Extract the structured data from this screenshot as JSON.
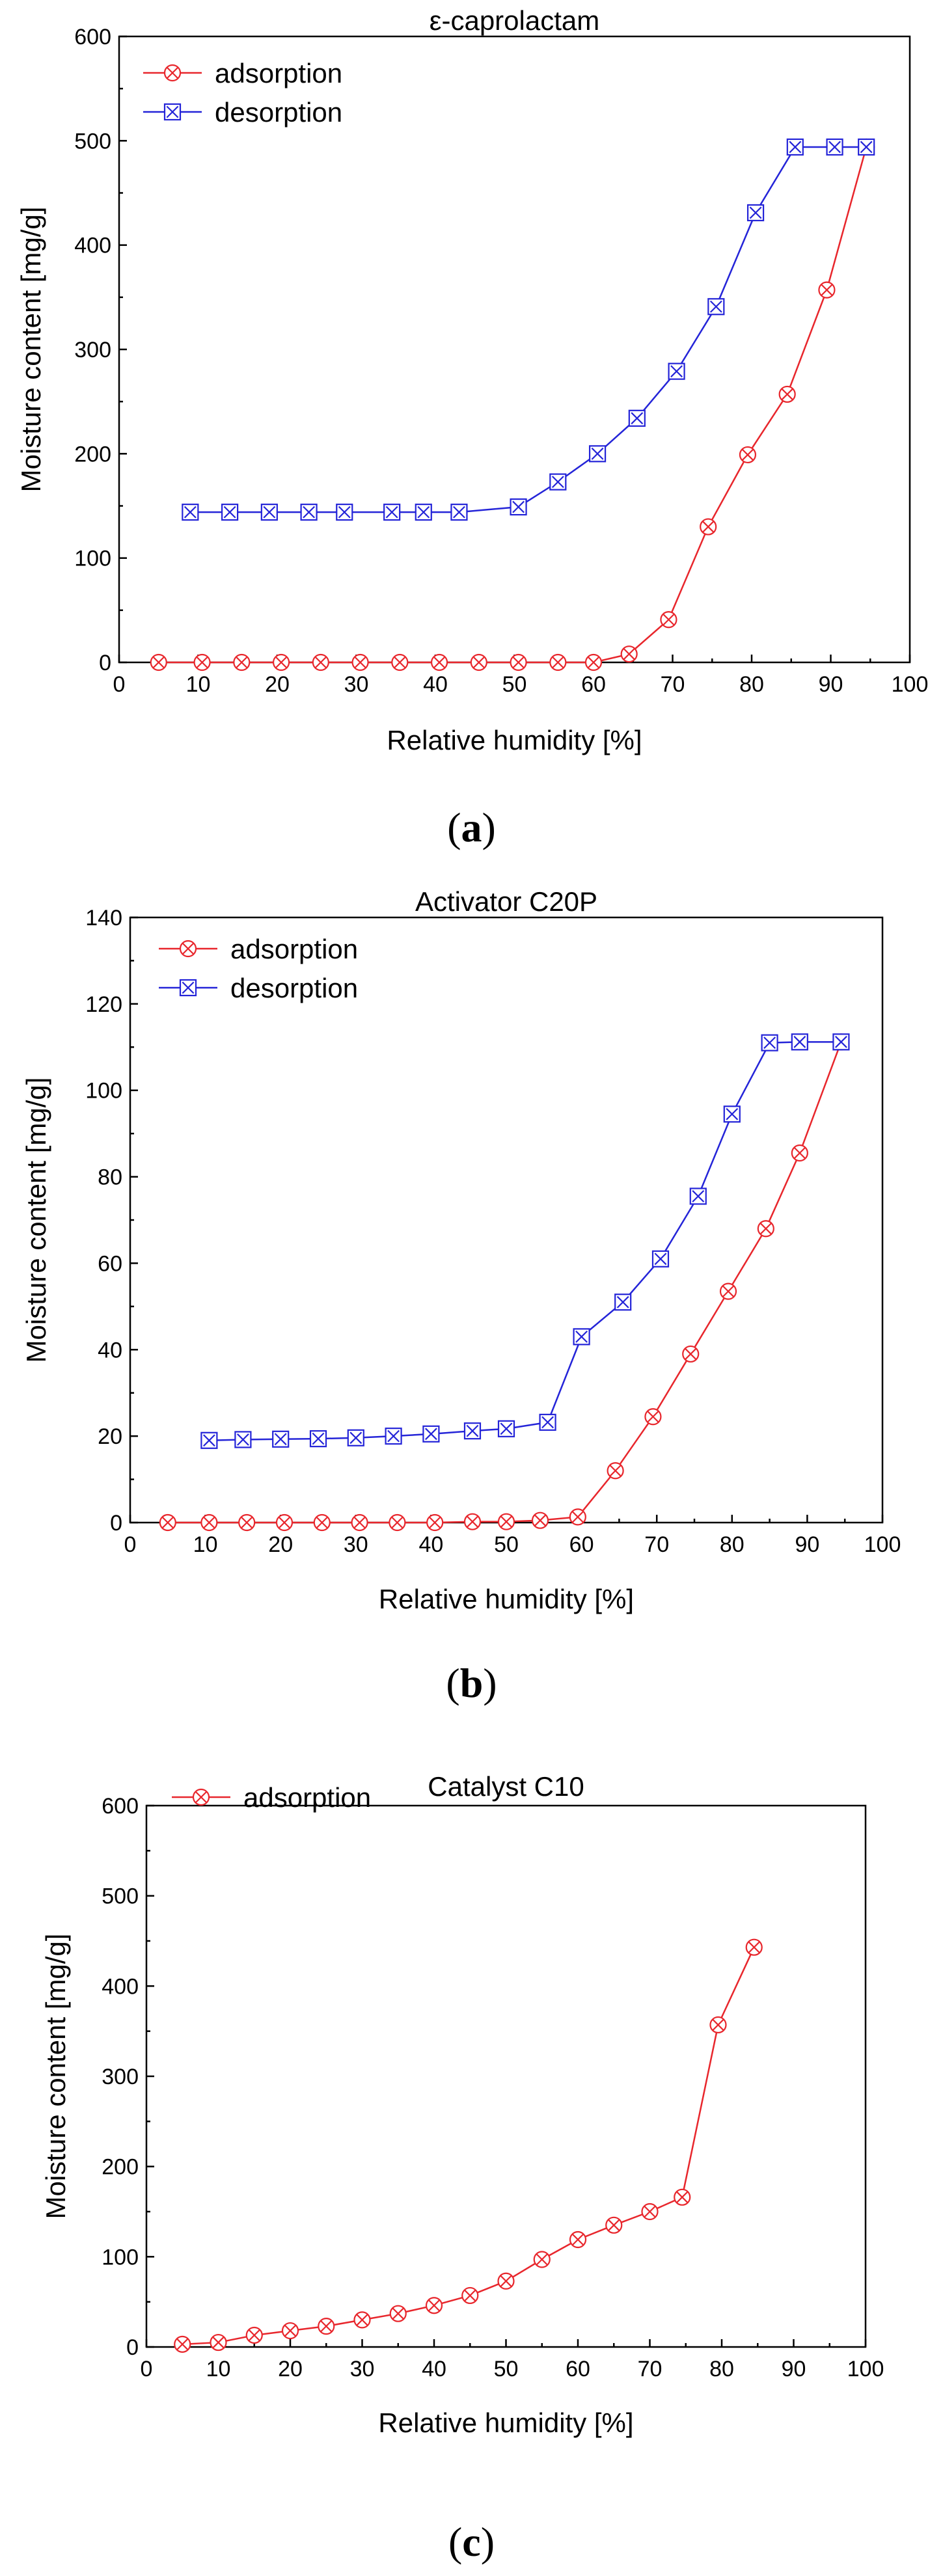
{
  "chart_data": [
    {
      "type": "line",
      "title": "ε-caprolactam",
      "xlabel": "Relative humidity [%]",
      "ylabel": "Moisture content [mg/g]",
      "xlim": [
        0,
        100
      ],
      "ylim": [
        0,
        600
      ],
      "xticks": [
        0,
        10,
        20,
        30,
        40,
        50,
        60,
        70,
        80,
        90,
        100
      ],
      "yticks": [
        0,
        100,
        200,
        300,
        400,
        500,
        600
      ],
      "legend_position": "top-left",
      "panel_label": "a",
      "series": [
        {
          "name": "adsorption",
          "color": "#e8262c",
          "x": [
            5,
            10.5,
            15.5,
            20.5,
            25.5,
            30.5,
            35.5,
            40.5,
            45.5,
            50.5,
            55.5,
            60,
            64.5,
            69.5,
            74.5,
            79.5,
            84.5,
            89.5,
            94.5
          ],
          "y": [
            0,
            0,
            0,
            0,
            0,
            0,
            0,
            0,
            0,
            0,
            0,
            0,
            8,
            41,
            130,
            199,
            257,
            357,
            494
          ]
        },
        {
          "name": "desorption",
          "color": "#2424d8",
          "x": [
            9,
            14,
            19,
            24,
            28.5,
            34.5,
            38.5,
            43,
            50.5,
            55.5,
            60.5,
            65.5,
            70.5,
            75.5,
            80.5,
            85.5,
            90.5,
            94.5
          ],
          "y": [
            144,
            144,
            144,
            144,
            144,
            144,
            144,
            144,
            149,
            173,
            200,
            234,
            279,
            341,
            431,
            494,
            494,
            494
          ]
        }
      ]
    },
    {
      "type": "line",
      "title": "Activator C20P",
      "xlabel": "Relative humidity [%]",
      "ylabel": "Moisture content [mg/g]",
      "xlim": [
        0,
        100
      ],
      "ylim": [
        0,
        140
      ],
      "xticks": [
        0,
        10,
        20,
        30,
        40,
        50,
        60,
        70,
        80,
        90,
        100
      ],
      "yticks": [
        0,
        20,
        40,
        60,
        80,
        100,
        120,
        140
      ],
      "legend_position": "top-left",
      "panel_label": "b",
      "series": [
        {
          "name": "adsorption",
          "color": "#e8262c",
          "x": [
            5,
            10.5,
            15.5,
            20.5,
            25.5,
            30.5,
            35.5,
            40.5,
            45.5,
            50,
            54.5,
            59.5,
            64.5,
            69.5,
            74.5,
            79.5,
            84.5,
            89,
            94.5
          ],
          "y": [
            0,
            0,
            0,
            0,
            0,
            0,
            0,
            0,
            0.2,
            0.2,
            0.5,
            1.3,
            12,
            24.5,
            39,
            53.5,
            68,
            85.5,
            111.2
          ]
        },
        {
          "name": "desorption",
          "color": "#2424d8",
          "x": [
            10.5,
            15,
            20,
            25,
            30,
            35,
            40,
            45.5,
            50,
            55.5,
            60,
            65.5,
            70.5,
            75.5,
            80,
            85,
            89,
            94.5
          ],
          "y": [
            19,
            19.2,
            19.3,
            19.4,
            19.6,
            20,
            20.5,
            21.2,
            21.7,
            23.2,
            43,
            51,
            61,
            75.5,
            94.5,
            111,
            111.2,
            111.2
          ]
        }
      ]
    },
    {
      "type": "line",
      "title": "Catalyst C10",
      "xlabel": "Relative humidity [%]",
      "ylabel": "Moisture content [mg/g]",
      "xlim": [
        0,
        100
      ],
      "ylim": [
        0,
        600
      ],
      "xticks": [
        0,
        10,
        20,
        30,
        40,
        50,
        60,
        70,
        80,
        90,
        100
      ],
      "yticks": [
        0,
        100,
        200,
        300,
        400,
        500,
        600
      ],
      "legend_position": "top-left",
      "panel_label": "c",
      "series": [
        {
          "name": "adsorption",
          "color": "#e8262c",
          "x": [
            5,
            10,
            15,
            20,
            25,
            30,
            35,
            40,
            45,
            50,
            55,
            60,
            65,
            70,
            74.5,
            79.5,
            84.5
          ],
          "y": [
            3,
            5,
            13,
            18,
            23,
            30,
            37,
            46,
            57,
            73,
            97,
            119,
            135,
            150,
            166,
            357,
            443
          ]
        }
      ]
    }
  ]
}
